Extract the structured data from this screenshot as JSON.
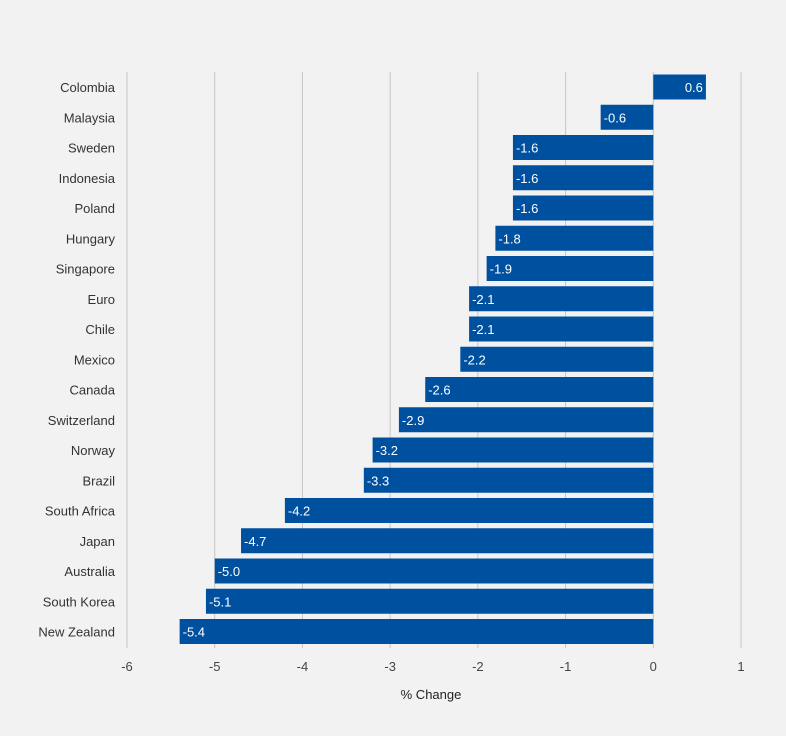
{
  "chart_data": {
    "type": "bar",
    "orientation": "horizontal",
    "categories": [
      "Colombia",
      "Malaysia",
      "Sweden",
      "Indonesia",
      "Poland",
      "Hungary",
      "Singapore",
      "Euro",
      "Chile",
      "Mexico",
      "Canada",
      "Switzerland",
      "Norway",
      "Brazil",
      "South Africa",
      "Japan",
      "Australia",
      "South Korea",
      "New Zealand"
    ],
    "values": [
      0.6,
      -0.6,
      -1.6,
      -1.6,
      -1.6,
      -1.8,
      -1.9,
      -2.1,
      -2.1,
      -2.2,
      -2.6,
      -2.9,
      -3.2,
      -3.3,
      -4.2,
      -4.7,
      -5.0,
      -5.1,
      -5.4
    ],
    "value_labels": [
      "0.6",
      "-0.6",
      "-1.6",
      "-1.6",
      "-1.6",
      "-1.8",
      "-1.9",
      "-2.1",
      "-2.1",
      "-2.2",
      "-2.6",
      "-2.9",
      "-3.2",
      "-3.3",
      "-4.2",
      "-4.7",
      "-5.0",
      "-5.1",
      "-5.4"
    ],
    "xlabel": "% Change",
    "ylabel": "",
    "xlim": [
      -6,
      1
    ],
    "xticks": [
      -6,
      -5,
      -4,
      -3,
      -2,
      -1,
      0,
      1
    ],
    "xtick_labels": [
      "-6",
      "-5",
      "-4",
      "-3",
      "-2",
      "-1",
      "0",
      "1"
    ],
    "grid": "vertical",
    "legend": "none",
    "colors": {
      "bar": "#0050a0",
      "bar_label": "#ffffff",
      "grid": "#c6c6c6",
      "text": "#333333",
      "background": "#f2f2f2"
    }
  }
}
